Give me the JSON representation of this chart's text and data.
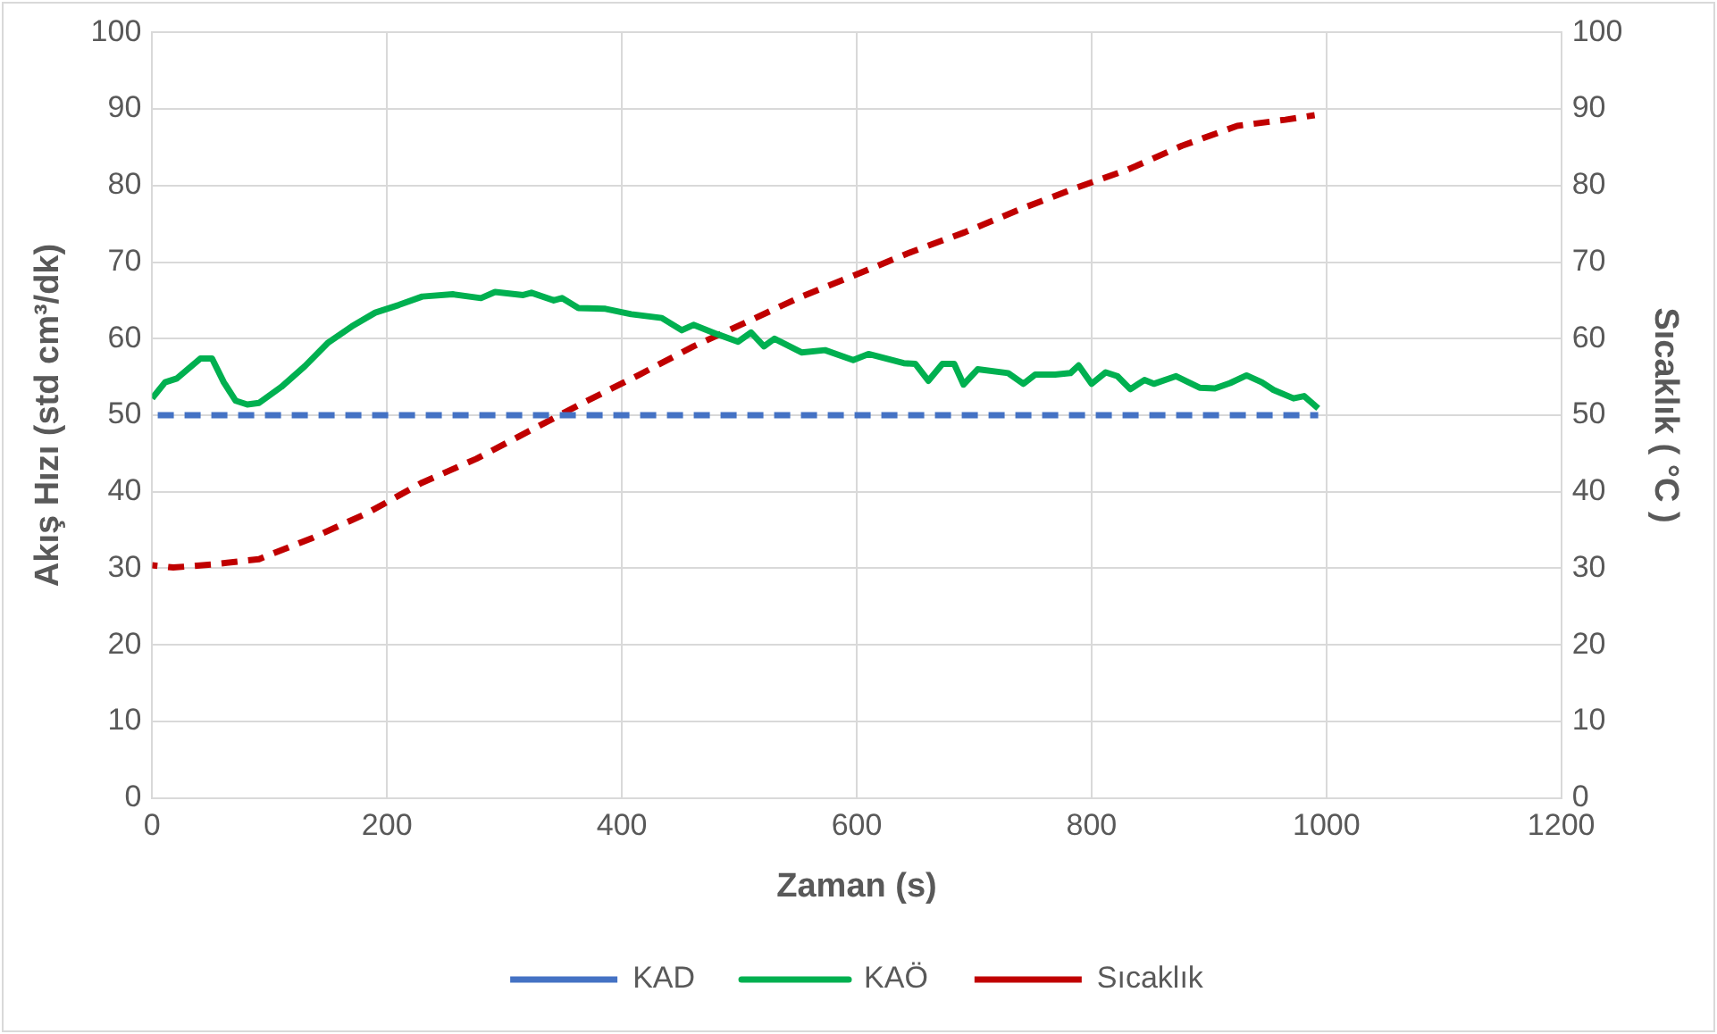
{
  "chart_data": {
    "type": "line",
    "xlabel": "Zaman (s)",
    "ylabel": "Akış Hızı (std cm³/dk)",
    "y2label": "Sıcaklık ( °C )",
    "xlim": [
      0,
      1200
    ],
    "xticks": [
      0,
      200,
      400,
      600,
      800,
      1000,
      1200
    ],
    "ylim": [
      0,
      100
    ],
    "yticks": [
      0,
      10,
      20,
      30,
      40,
      50,
      60,
      70,
      80,
      90,
      100
    ],
    "y2lim": [
      0,
      100
    ],
    "y2ticks": [
      0,
      10,
      20,
      30,
      40,
      50,
      60,
      70,
      80,
      90,
      100
    ],
    "grid": true,
    "legend": "bottom",
    "marker": "none",
    "series": [
      {
        "name": "KAD",
        "color": "#4472c4",
        "line_style": "dashed",
        "x": [
          0,
          993
        ],
        "values": [
          50,
          50
        ]
      },
      {
        "name": "KAÖ",
        "color": "#00b050",
        "line_style": "solid",
        "x": [
          0,
          11,
          21,
          41,
          51,
          61,
          71,
          81,
          91,
          110,
          130,
          150,
          170,
          190,
          210,
          230,
          256,
          280,
          292,
          316,
          323,
          342,
          349,
          363,
          386,
          408,
          434,
          451,
          461,
          481,
          499,
          510,
          521,
          530,
          553,
          573,
          597,
          610,
          640,
          650,
          661,
          673,
          683,
          691,
          703,
          729,
          742,
          752,
          769,
          782,
          789,
          800,
          812,
          822,
          833,
          845,
          853,
          872,
          892,
          905,
          918,
          932,
          945,
          955,
          972,
          981,
          993
        ],
        "values": [
          52.2,
          54.3,
          54.8,
          57.4,
          57.4,
          54.3,
          51.9,
          51.4,
          51.6,
          53.7,
          56.4,
          59.5,
          61.6,
          63.4,
          64.4,
          65.5,
          65.8,
          65.3,
          66.1,
          65.7,
          66,
          65,
          65.3,
          64,
          63.9,
          63.2,
          62.7,
          61.1,
          61.8,
          60.6,
          59.6,
          60.8,
          59,
          60,
          58.2,
          58.5,
          57.2,
          58,
          56.8,
          56.7,
          54.5,
          56.7,
          56.7,
          54,
          56,
          55.5,
          54.1,
          55.3,
          55.3,
          55.5,
          56.5,
          54.1,
          55.6,
          55.1,
          53.4,
          54.6,
          54.1,
          55.1,
          53.6,
          53.5,
          54.2,
          55.2,
          54.3,
          53.3,
          52.2,
          52.5,
          50.9
        ]
      },
      {
        "name": "Sıcaklık",
        "color": "#c00000",
        "line_style": "dashed",
        "axis": "y2",
        "x": [
          0,
          18,
          51,
          91,
          137,
          183,
          230,
          276,
          322,
          368,
          415,
          461,
          508,
          553,
          600,
          646,
          692,
          739,
          785,
          831,
          877,
          924,
          965,
          990
        ],
        "values": [
          30.4,
          30.1,
          30.5,
          31.2,
          34,
          37.2,
          41.2,
          44.3,
          48,
          51.7,
          55.3,
          59,
          62.3,
          65.5,
          68.4,
          71.3,
          73.9,
          76.9,
          79.6,
          82.1,
          85.2,
          87.8,
          88.6,
          89.2
        ]
      }
    ]
  }
}
